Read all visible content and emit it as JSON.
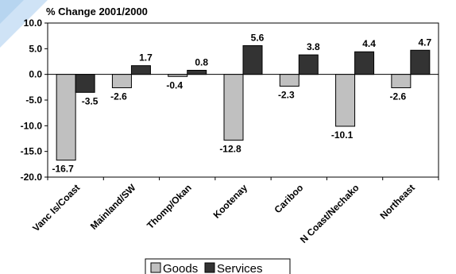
{
  "chart_data": {
    "type": "bar",
    "title": "% Change 2001/2000",
    "categories": [
      "Vanc Is/Coast",
      "Mainland/SW",
      "Thomp/Okan",
      "Kootenay",
      "Cariboo",
      "N Coast/Nechako",
      "Northeast"
    ],
    "series": [
      {
        "name": "Goods",
        "values": [
          -16.7,
          -2.6,
          -0.4,
          -12.8,
          -2.3,
          -10.1,
          -2.6
        ],
        "color": "#c0c0c0"
      },
      {
        "name": "Services",
        "values": [
          -3.5,
          1.7,
          0.8,
          5.6,
          3.8,
          4.4,
          4.7
        ],
        "color": "#333333"
      }
    ],
    "ylim": [
      -20,
      10
    ],
    "yticks": [
      "10.0",
      "5.0",
      "0.0",
      "-5.0",
      "-10.0",
      "-15.0",
      "-20.0"
    ],
    "grid": false,
    "legend": "bottom"
  }
}
